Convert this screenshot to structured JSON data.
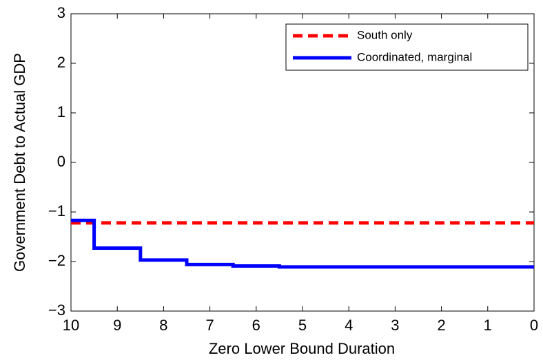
{
  "chart_data": {
    "type": "line",
    "xlabel": "Zero Lower Bound Duration",
    "ylabel": "Government Debt to Actual GDP",
    "xlim": [
      10,
      0
    ],
    "ylim": [
      -3,
      3
    ],
    "xticks": [
      10,
      9,
      8,
      7,
      6,
      5,
      4,
      3,
      2,
      1,
      0
    ],
    "yticks": [
      {
        "value": -3,
        "label": "−3"
      },
      {
        "value": -2,
        "label": "−2"
      },
      {
        "value": -1,
        "label": "−1"
      },
      0,
      1,
      2,
      3
    ],
    "legend": "upper right",
    "series": [
      {
        "name": "South only",
        "color": "#ff0000",
        "dash": true,
        "x": [
          10,
          0
        ],
        "values": [
          -1.22,
          -1.22
        ]
      },
      {
        "name": "Coordinated, marginal",
        "color": "#0000ff",
        "dash": false,
        "x": [
          10,
          9.5,
          9.5,
          8.5,
          8.5,
          7.5,
          7.5,
          6.5,
          6.5,
          5.5,
          5.5,
          0
        ],
        "values": [
          -1.17,
          -1.17,
          -1.73,
          -1.73,
          -1.97,
          -1.97,
          -2.06,
          -2.06,
          -2.09,
          -2.09,
          -2.11,
          -2.11
        ]
      }
    ]
  }
}
